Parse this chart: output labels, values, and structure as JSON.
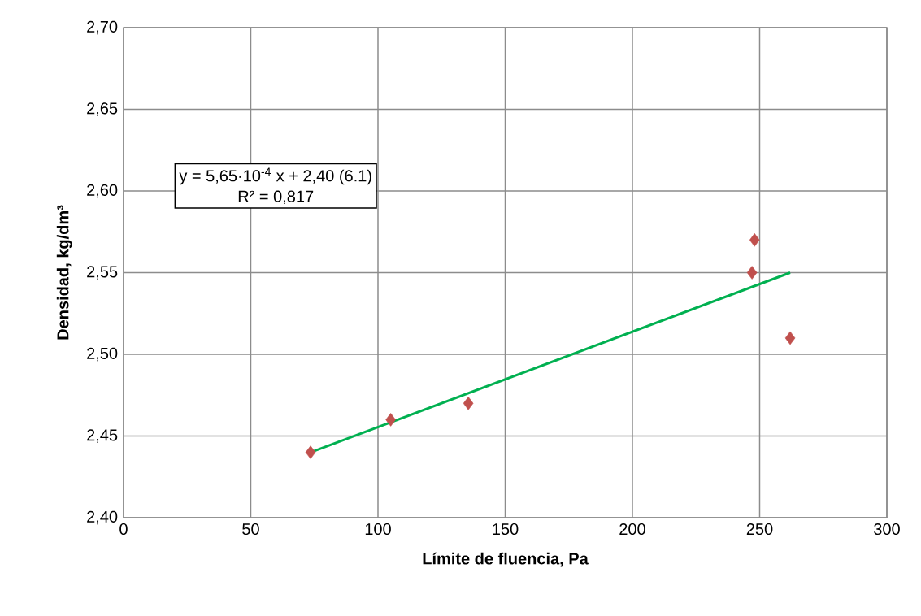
{
  "chart_data": {
    "type": "scatter",
    "xlabel": "Límite de fluencia, Pa",
    "ylabel": "Densidad, kg/dm³",
    "series": [
      {
        "color": "#c0504d",
        "marker": "diamond",
        "x": [
          73.5,
          105,
          135.5,
          247,
          248,
          262
        ],
        "values": [
          2.44,
          2.46,
          2.47,
          2.55,
          2.57,
          2.51
        ]
      },
      {
        "type": "line",
        "color": "#00b050",
        "marker": "none",
        "line_style": "solid",
        "x": [
          73.5,
          262
        ],
        "values": [
          2.44,
          2.55
        ]
      }
    ],
    "xlim": [
      0,
      300
    ],
    "xticks": [
      0,
      50,
      100,
      150,
      200,
      250,
      300
    ],
    "ylim": [
      2.4,
      2.7
    ],
    "yticks": [
      {
        "value": 2.4,
        "label": "2,40"
      },
      {
        "value": 2.45,
        "label": "2,45"
      },
      {
        "value": 2.5,
        "label": "2,50"
      },
      {
        "value": 2.55,
        "label": "2,55"
      },
      {
        "value": 2.6,
        "label": "2,60"
      },
      {
        "value": 2.65,
        "label": "2,65"
      },
      {
        "value": 2.7,
        "label": "2,70"
      }
    ],
    "grid": true,
    "annotations": [
      "y = 5,65·10$^{-4}$ x + 2,40          (6.1)",
      "R² = 0,817"
    ]
  }
}
